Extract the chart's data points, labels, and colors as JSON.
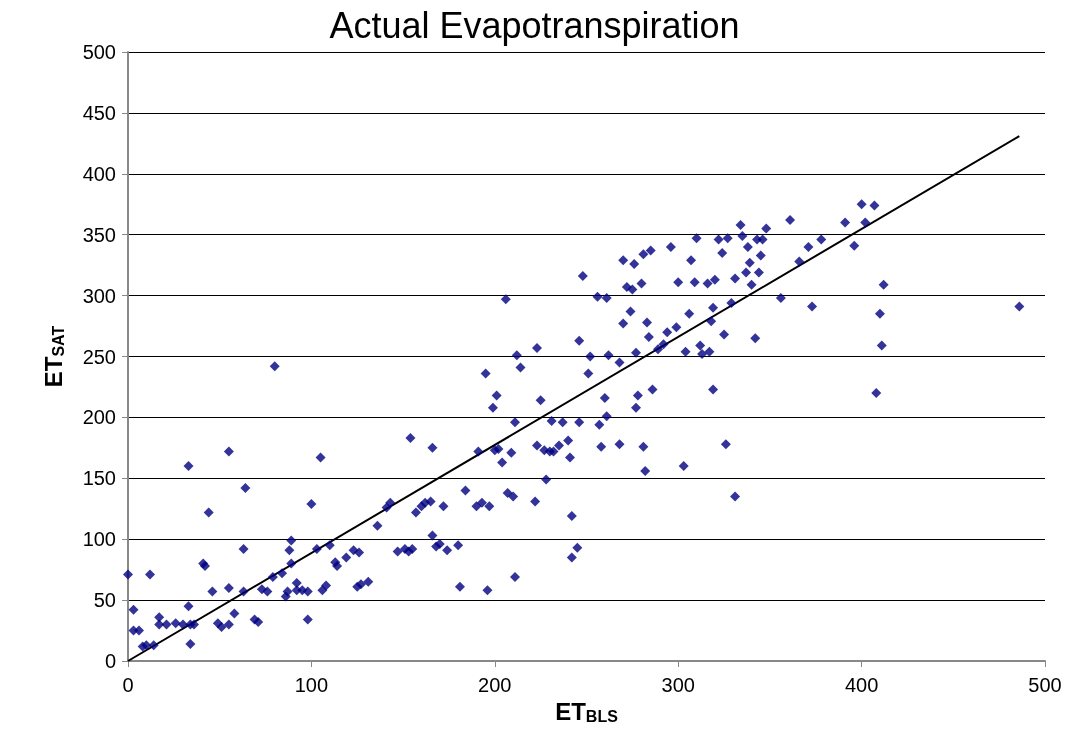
{
  "chart_data": {
    "type": "scatter",
    "title": "Actual Evapotranspiration",
    "xlabel": "ET$_{BLS}$",
    "ylabel": "ET$_{SAT}$",
    "xlim": [
      0,
      500
    ],
    "xticks": [
      0,
      100,
      200,
      300,
      400,
      500
    ],
    "ylim": [
      0,
      500
    ],
    "yticks": [
      0,
      50,
      100,
      150,
      200,
      250,
      300,
      350,
      400,
      450,
      500
    ],
    "grid": "y",
    "marker": "diamond",
    "series": [
      {
        "color": "#000080",
        "x": [
          0,
          3,
          3,
          6,
          8,
          10,
          12,
          14,
          17,
          17,
          21,
          26,
          30,
          33,
          33,
          34,
          34,
          36,
          41,
          42,
          44,
          46,
          49,
          51,
          55,
          55,
          55,
          58,
          63,
          63,
          64,
          69,
          71,
          73,
          76,
          79,
          80,
          84,
          86,
          87,
          89,
          89,
          88,
          92,
          92,
          95,
          98,
          98,
          100,
          105,
          103,
          106,
          108,
          110,
          113,
          114,
          119,
          123,
          125,
          126,
          127,
          131,
          136,
          141,
          143,
          147,
          151,
          153,
          154,
          155,
          157,
          160,
          162,
          165,
          166,
          166,
          168,
          170,
          172,
          174,
          180,
          181,
          184,
          190,
          191,
          193,
          195,
          196,
          197,
          199,
          200,
          201,
          202,
          204,
          206,
          207,
          209,
          210,
          211,
          211,
          212,
          214,
          222,
          223,
          223,
          225,
          227,
          228,
          230,
          231,
          232,
          235,
          237,
          240,
          241,
          242,
          242,
          245,
          246,
          246,
          248,
          251,
          252,
          256,
          257,
          258,
          260,
          261,
          261,
          262,
          268,
          268,
          270,
          270,
          272,
          274,
          275,
          276,
          277,
          277,
          278,
          280,
          281,
          281,
          282,
          283,
          284,
          285,
          286,
          289,
          292,
          294,
          296,
          299,
          300,
          303,
          304,
          306,
          307,
          309,
          310,
          312,
          313,
          316,
          317,
          318,
          319,
          319,
          320,
          322,
          324,
          325,
          326,
          327,
          329,
          331,
          331,
          334,
          335,
          337,
          338,
          339,
          340,
          342,
          343,
          344,
          345,
          346,
          348,
          356,
          361,
          366,
          371,
          373,
          378,
          391,
          396,
          400,
          402,
          407,
          408,
          410,
          411,
          412,
          486
        ],
        "values": [
          71,
          42,
          25,
          25,
          12,
          13,
          71,
          13,
          36,
          30,
          30,
          31,
          30,
          160,
          45,
          30,
          14,
          30,
          80,
          78,
          122,
          57,
          31,
          28,
          172,
          60,
          30,
          39,
          57,
          92,
          142,
          34,
          32,
          59,
          57,
          69,
          242,
          72,
          53,
          57,
          80,
          99,
          91,
          64,
          58,
          58,
          34,
          57,
          129,
          167,
          92,
          58,
          62,
          95,
          81,
          78,
          85,
          91,
          61,
          89,
          63,
          65,
          111,
          126,
          130,
          90,
          92,
          90,
          183,
          92,
          122,
          127,
          130,
          131,
          103,
          175,
          94,
          96,
          127,
          91,
          95,
          61,
          140,
          127,
          172,
          130,
          236,
          58,
          127,
          208,
          173,
          218,
          174,
          163,
          297,
          138,
          171,
          135,
          196,
          69,
          251,
          241,
          131,
          257,
          177,
          214,
          173,
          149,
          172,
          197,
          172,
          177,
          196,
          181,
          167,
          119,
          85,
          93,
          196,
          263,
          316,
          236,
          250,
          299,
          194,
          176,
          216,
          298,
          201,
          251,
          178,
          245,
          329,
          277,
          307,
          287,
          305,
          326,
          253,
          208,
          218,
          310,
          334,
          176,
          156,
          278,
          266,
          337,
          223,
          256,
          260,
          270,
          340,
          274,
          311,
          160,
          254,
          285,
          329,
          311,
          347,
          259,
          252,
          310,
          254,
          279,
          223,
          290,
          313,
          346,
          335,
          268,
          178,
          347,
          294,
          135,
          314,
          358,
          349,
          319,
          340,
          327,
          309,
          265,
          346,
          319,
          333,
          346,
          355,
          298,
          362,
          328,
          340,
          291,
          346,
          360,
          341,
          375,
          360,
          374,
          220,
          285,
          259,
          309,
          291
        ]
      },
      {
        "type": "line",
        "color": "#000000",
        "x": [
          0,
          486
        ],
        "values": [
          0,
          431
        ],
        "marker": "none"
      }
    ]
  }
}
